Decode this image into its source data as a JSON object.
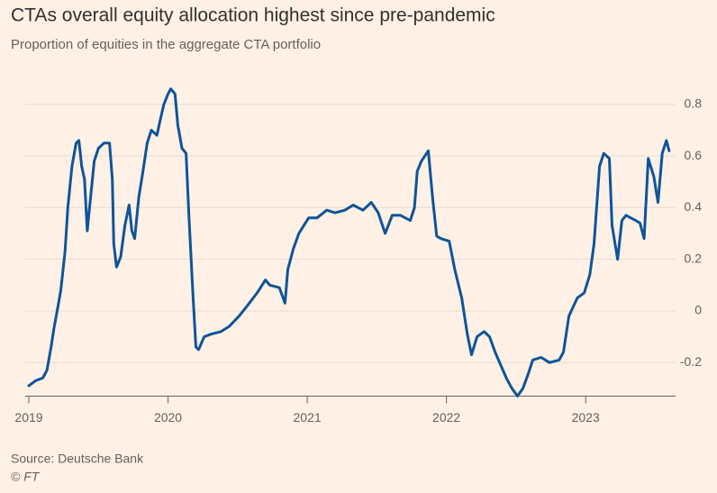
{
  "chart_data": {
    "type": "line",
    "title": "CTAs overall equity allocation highest since pre-pandemic",
    "subtitle": "Proportion of equities in the aggregate CTA portfolio",
    "source": "Source: Deutsche Bank",
    "credit": "© FT",
    "color": "#0f5499",
    "grid": true,
    "x": [
      2019.0,
      2019.05,
      2019.1,
      2019.13,
      2019.16,
      2019.18,
      2019.21,
      2019.23,
      2019.26,
      2019.28,
      2019.31,
      2019.34,
      2019.36,
      2019.38,
      2019.4,
      2019.42,
      2019.44,
      2019.47,
      2019.5,
      2019.54,
      2019.58,
      2019.6,
      2019.61,
      2019.63,
      2019.66,
      2019.69,
      2019.72,
      2019.74,
      2019.76,
      2019.79,
      2019.82,
      2019.85,
      2019.88,
      2019.92,
      2019.94,
      2019.97,
      2020.0,
      2020.02,
      2020.05,
      2020.07,
      2020.1,
      2020.13,
      2020.15,
      2020.18,
      2020.2,
      2020.22,
      2020.26,
      2020.31,
      2020.38,
      2020.44,
      2020.51,
      2020.57,
      2020.64,
      2020.7,
      2020.73,
      2020.8,
      2020.84,
      2020.86,
      2020.9,
      2020.94,
      2021.01,
      2021.07,
      2021.14,
      2021.2,
      2021.27,
      2021.33,
      2021.4,
      2021.46,
      2021.51,
      2021.56,
      2021.61,
      2021.67,
      2021.74,
      2021.77,
      2021.79,
      2021.82,
      2021.87,
      2021.9,
      2021.93,
      2021.96,
      2022.02,
      2022.06,
      2022.11,
      2022.15,
      2022.18,
      2022.22,
      2022.27,
      2022.31,
      2022.35,
      2022.39,
      2022.43,
      2022.47,
      2022.51,
      2022.55,
      2022.59,
      2022.62,
      2022.68,
      2022.74,
      2022.81,
      2022.84,
      2022.88,
      2022.94,
      2022.99,
      2023.03,
      2023.06,
      2023.1,
      2023.13,
      2023.17,
      2023.19,
      2023.23,
      2023.26,
      2023.29,
      2023.36,
      2023.39,
      2023.42,
      2023.45,
      2023.49,
      2023.52,
      2023.55,
      2023.58,
      2023.6
    ],
    "values": [
      -0.29,
      -0.27,
      -0.26,
      -0.23,
      -0.14,
      -0.07,
      0.02,
      0.08,
      0.23,
      0.4,
      0.56,
      0.65,
      0.66,
      0.56,
      0.51,
      0.31,
      0.42,
      0.58,
      0.63,
      0.65,
      0.65,
      0.51,
      0.26,
      0.17,
      0.21,
      0.33,
      0.41,
      0.31,
      0.28,
      0.44,
      0.54,
      0.65,
      0.7,
      0.68,
      0.73,
      0.8,
      0.84,
      0.86,
      0.84,
      0.72,
      0.63,
      0.61,
      0.37,
      0.05,
      -0.14,
      -0.15,
      -0.1,
      -0.09,
      -0.08,
      -0.06,
      -0.02,
      0.02,
      0.07,
      0.12,
      0.1,
      0.09,
      0.03,
      0.16,
      0.24,
      0.3,
      0.36,
      0.36,
      0.39,
      0.38,
      0.39,
      0.41,
      0.39,
      0.42,
      0.38,
      0.3,
      0.37,
      0.37,
      0.35,
      0.4,
      0.54,
      0.58,
      0.62,
      0.44,
      0.29,
      0.28,
      0.27,
      0.16,
      0.05,
      -0.09,
      -0.17,
      -0.1,
      -0.08,
      -0.1,
      -0.16,
      -0.21,
      -0.26,
      -0.3,
      -0.33,
      -0.3,
      -0.24,
      -0.19,
      -0.18,
      -0.2,
      -0.19,
      -0.16,
      -0.02,
      0.05,
      0.07,
      0.14,
      0.26,
      0.56,
      0.61,
      0.59,
      0.33,
      0.2,
      0.35,
      0.37,
      0.35,
      0.34,
      0.28,
      0.59,
      0.52,
      0.42,
      0.61,
      0.66,
      0.62
    ],
    "xlim": [
      2019,
      2023.62
    ],
    "xticks": [
      2019,
      2020,
      2021,
      2022,
      2023
    ],
    "ylim": [
      -0.33,
      0.87
    ],
    "yticks": [
      -0.2,
      0,
      0.2,
      0.4,
      0.6,
      0.8
    ]
  }
}
